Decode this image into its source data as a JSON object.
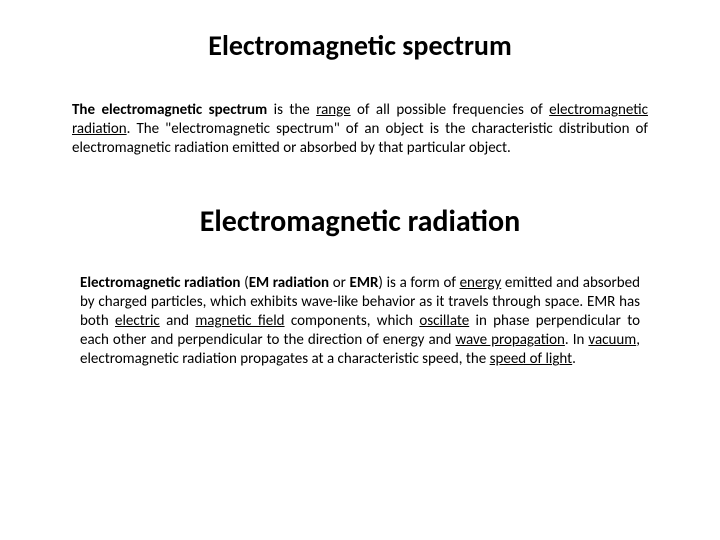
{
  "heading1": "Electromagnetic spectrum",
  "p1": {
    "lead": "The electromagnetic spectrum",
    "t1": " is the ",
    "link1": "range",
    "t2": " of all possible frequencies of ",
    "link2": "electromagnetic radiation",
    "t3": ". The \"electromagnetic spectrum\" of an object is the characteristic distribution of electromagnetic radiation emitted or absorbed by that particular object."
  },
  "heading2": "Electromagnetic radiation",
  "p2": {
    "b1": "Electromagnetic radiation",
    "t1": " (",
    "b2": "EM radiation",
    "t2": " or ",
    "b3": "EMR",
    "t3": ") is a form of ",
    "link1": "energy",
    "t4": " emitted and absorbed by charged particles, which exhibits wave-like behavior as it travels through space. EMR has both ",
    "link2": "electric",
    "t5": " and ",
    "link3": "magnetic field",
    "t6": " components, which ",
    "link4": "oscillate",
    "t7": " in phase perpendicular to each other and perpendicular to the direction of energy and ",
    "link5": "wave propagation",
    "t8": ". In ",
    "link6": "vacuum",
    "t9": ", electromagnetic radiation propagates at a characteristic speed, the ",
    "link7": "speed of light",
    "t10": "."
  },
  "colors": {
    "text": "#000000",
    "background": "#ffffff"
  },
  "typography": {
    "title_fontsize": 28,
    "title2_fontsize": 30,
    "body_fontsize": 15,
    "font_family": "Calibri"
  }
}
